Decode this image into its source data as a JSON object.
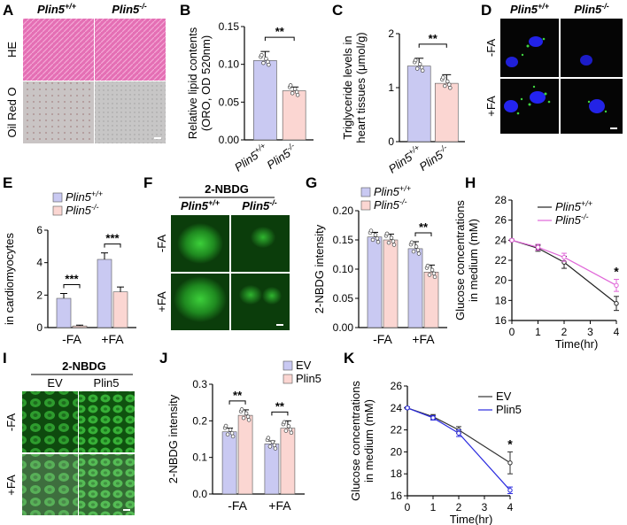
{
  "figure": {
    "panel_letters": [
      "A",
      "B",
      "C",
      "D",
      "E",
      "F",
      "G",
      "H",
      "I",
      "J",
      "K"
    ],
    "colors": {
      "wt": "#c9c9f2",
      "ko": "#fbd6d2",
      "ev": "#c9c9f2",
      "plin5": "#fbd6d2",
      "h_wt_line": "#222222",
      "h_ko_line": "#e066d8",
      "k_ev_line": "#333333",
      "k_plin5_line": "#2b2bdf",
      "green_bg": "#0b3d0b",
      "he_pink": "#e46fb4"
    }
  },
  "panel_a": {
    "col_labels": [
      "Plin5",
      "+/+",
      "Plin5",
      "-/-"
    ],
    "row_labels": [
      "HE",
      "Oil Red O"
    ]
  },
  "panel_d": {
    "col_labels": [
      "Plin5",
      "+/+",
      "Plin5",
      "-/-"
    ],
    "row_labels": [
      "-FA",
      "+FA"
    ]
  },
  "panel_f": {
    "title": "2-NBDG",
    "col_labels": [
      "Plin5",
      "+/+",
      "Plin5",
      "-/-"
    ],
    "row_labels": [
      "-FA",
      "+FA"
    ]
  },
  "panel_i": {
    "title": "2-NBDG",
    "col_labels": [
      "EV",
      "Plin5"
    ],
    "row_labels": [
      "-FA",
      "+FA"
    ]
  },
  "chart_data": [
    {
      "panel": "B",
      "type": "bar",
      "categories": [
        "Plin5+/+",
        "Plin5-/-"
      ],
      "cat_main": [
        "Plin5",
        "Plin5"
      ],
      "cat_sup": [
        "+/+",
        "-/-"
      ],
      "values": [
        0.105,
        0.065
      ],
      "errors": [
        0.012,
        0.005
      ],
      "ylabel": [
        "Relative lipid contents",
        "(ORO, OD 520nm)"
      ],
      "ylim": [
        0,
        0.15
      ],
      "yticks": [
        "0.00",
        "0.05",
        "0.10",
        "0.15"
      ],
      "significance": "**"
    },
    {
      "panel": "C",
      "type": "bar",
      "categories": [
        "Plin5+/+",
        "Plin5-/-"
      ],
      "cat_main": [
        "Plin5",
        "Plin5"
      ],
      "cat_sup": [
        "+/+",
        "-/-"
      ],
      "values": [
        1.75,
        1.35
      ],
      "errors": [
        0.18,
        0.2
      ],
      "ylabel": [
        "Triglyceride levels in",
        "heart tissues (μmol/g)"
      ],
      "ylim": [
        0,
        2.5
      ],
      "yticks": [
        "0",
        "1",
        "2"
      ],
      "significance": "**"
    },
    {
      "panel": "E",
      "type": "bar",
      "categories": [
        "-FA",
        "+FA"
      ],
      "series": [
        {
          "name": "Plin5+/+",
          "main": "Plin5",
          "sup": "+/+",
          "values": [
            1.8,
            4.2
          ],
          "errors": [
            0.3,
            0.4
          ]
        },
        {
          "name": "Plin5-/-",
          "main": "Plin5",
          "sup": "-/-",
          "values": [
            0.1,
            2.2
          ],
          "errors": [
            0.05,
            0.3
          ]
        }
      ],
      "ylabel": [
        "Relative LD contents",
        "in cardiomyocytes"
      ],
      "ylim": [
        0,
        6
      ],
      "yticks": [
        "0",
        "2",
        "4",
        "6"
      ],
      "significance": [
        "***",
        "***"
      ]
    },
    {
      "panel": "G",
      "type": "bar",
      "categories": [
        "-FA",
        "+FA"
      ],
      "series": [
        {
          "name": "Plin5+/+",
          "main": "Plin5",
          "sup": "+/+",
          "values": [
            0.155,
            0.135
          ],
          "errors": [
            0.008,
            0.012
          ]
        },
        {
          "name": "Plin5-/-",
          "main": "Plin5",
          "sup": "-/-",
          "values": [
            0.15,
            0.095
          ],
          "errors": [
            0.01,
            0.012
          ]
        }
      ],
      "ylabel": [
        "2-NBDG intensity"
      ],
      "ylim": [
        0,
        0.2
      ],
      "yticks": [
        "0.00",
        "0.05",
        "0.10",
        "0.15",
        "0.20"
      ],
      "significance": [
        "",
        "**"
      ]
    },
    {
      "panel": "H",
      "type": "line",
      "x": [
        0,
        1,
        2,
        4
      ],
      "series": [
        {
          "name": "Plin5+/+",
          "main": "Plin5",
          "sup": "+/+",
          "values": [
            24,
            23.2,
            21.8,
            17.7
          ],
          "errors": [
            0.1,
            0.3,
            0.6,
            0.7
          ]
        },
        {
          "name": "Plin5-/-",
          "main": "Plin5",
          "sup": "-/-",
          "values": [
            24,
            23.3,
            22.3,
            19.5
          ],
          "errors": [
            0.1,
            0.3,
            0.4,
            0.6
          ]
        }
      ],
      "xlabel": "Time(hr)",
      "ylabel": [
        "Glucose concentrations",
        "in medium (mM)"
      ],
      "ylim": [
        16,
        28
      ],
      "yticks": [
        "16",
        "18",
        "20",
        "22",
        "24",
        "26",
        "28"
      ],
      "xticks": [
        "0",
        "1",
        "2",
        "3",
        "4"
      ],
      "xlim": [
        0,
        4
      ],
      "significance": "*"
    },
    {
      "panel": "J",
      "type": "bar",
      "categories": [
        "-FA",
        "+FA"
      ],
      "series": [
        {
          "name": "EV",
          "values": [
            0.17,
            0.137
          ],
          "errors": [
            0.01,
            0.008
          ]
        },
        {
          "name": "Plin5",
          "values": [
            0.215,
            0.18
          ],
          "errors": [
            0.015,
            0.02
          ]
        }
      ],
      "ylabel": [
        "2-NBDG intensity"
      ],
      "ylim": [
        0,
        0.3
      ],
      "yticks": [
        "0.0",
        "0.1",
        "0.2",
        "0.3"
      ],
      "significance": [
        "**",
        "**"
      ]
    },
    {
      "panel": "K",
      "type": "line",
      "x": [
        0,
        1,
        2,
        4
      ],
      "series": [
        {
          "name": "EV",
          "values": [
            24,
            23.2,
            22,
            19
          ],
          "errors": [
            0.1,
            0.2,
            0.3,
            1.0
          ]
        },
        {
          "name": "Plin5",
          "values": [
            24,
            23.1,
            21.7,
            16.5
          ],
          "errors": [
            0.1,
            0.2,
            0.3,
            0.3
          ]
        }
      ],
      "xlabel": "Time(hr)",
      "ylabel": [
        "Glucose concentrations",
        "in medium (mM)"
      ],
      "ylim": [
        16,
        26
      ],
      "yticks": [
        "16",
        "18",
        "20",
        "22",
        "24",
        "26"
      ],
      "xticks": [
        "0",
        "1",
        "2",
        "3",
        "4"
      ],
      "xlim": [
        0,
        4
      ],
      "significance": "*"
    }
  ]
}
